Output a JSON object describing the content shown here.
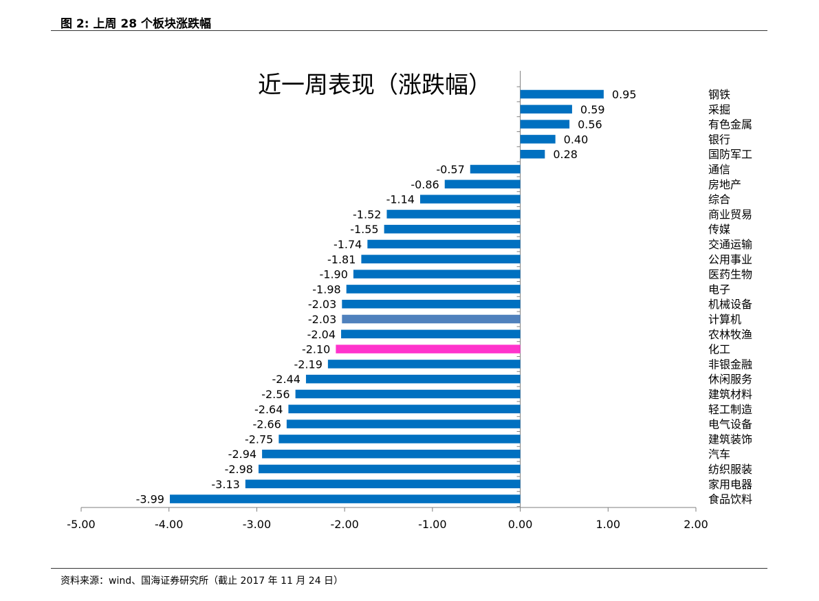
{
  "header": {
    "figure_title": "图 2:  上周 28 个板块涨跌幅"
  },
  "footer": {
    "source": "资料来源：wind、国海证券研究所（截止 2017 年 11 月 24 日）"
  },
  "colors": {
    "bar": "#0070C0",
    "highlight_computer": "#4F81BD",
    "highlight_chemical": "#FF33CC",
    "axis": "#7F7F7F"
  },
  "chart_data": {
    "type": "bar",
    "orientation": "horizontal",
    "title": "近一周表现（涨跌幅）",
    "categories": [
      "钢铁",
      "采掘",
      "有色金属",
      "银行",
      "国防军工",
      "通信",
      "房地产",
      "综合",
      "商业贸易",
      "传媒",
      "交通运输",
      "公用事业",
      "医药生物",
      "电子",
      "机械设备",
      "计算机",
      "农林牧渔",
      "化工",
      "非银金融",
      "休闲服务",
      "建筑材料",
      "轻工制造",
      "电气设备",
      "建筑装饰",
      "汽车",
      "纺织服装",
      "家用电器",
      "食品饮料"
    ],
    "values": [
      0.95,
      0.59,
      0.56,
      0.4,
      0.28,
      -0.57,
      -0.86,
      -1.14,
      -1.52,
      -1.55,
      -1.74,
      -1.81,
      -1.9,
      -1.98,
      -2.03,
      -2.03,
      -2.04,
      -2.1,
      -2.19,
      -2.44,
      -2.56,
      -2.64,
      -2.66,
      -2.75,
      -2.94,
      -2.98,
      -3.13,
      -3.99
    ],
    "value_labels": [
      "0.95",
      "0.59",
      "0.56",
      "0.40",
      "0.28",
      "-0.57",
      "-0.86",
      "-1.14",
      "-1.52",
      "-1.55",
      "-1.74",
      "-1.81",
      "-1.90",
      "-1.98",
      "-2.03",
      "-2.03",
      "-2.04",
      "-2.10",
      "-2.19",
      "-2.44",
      "-2.56",
      "-2.64",
      "-2.66",
      "-2.75",
      "-2.94",
      "-2.98",
      "-3.13",
      "-3.99"
    ],
    "highlight": {
      "计算机": "#4F81BD",
      "化工": "#FF33CC"
    },
    "xlim": [
      -5.0,
      2.0
    ],
    "xticks": [
      -5.0,
      -4.0,
      -3.0,
      -2.0,
      -1.0,
      0.0,
      1.0,
      2.0
    ],
    "xtick_labels": [
      "-5.00",
      "-4.00",
      "-3.00",
      "-2.00",
      "-1.00",
      "0.00",
      "1.00",
      "2.00"
    ],
    "grid": false,
    "legend": "none"
  }
}
